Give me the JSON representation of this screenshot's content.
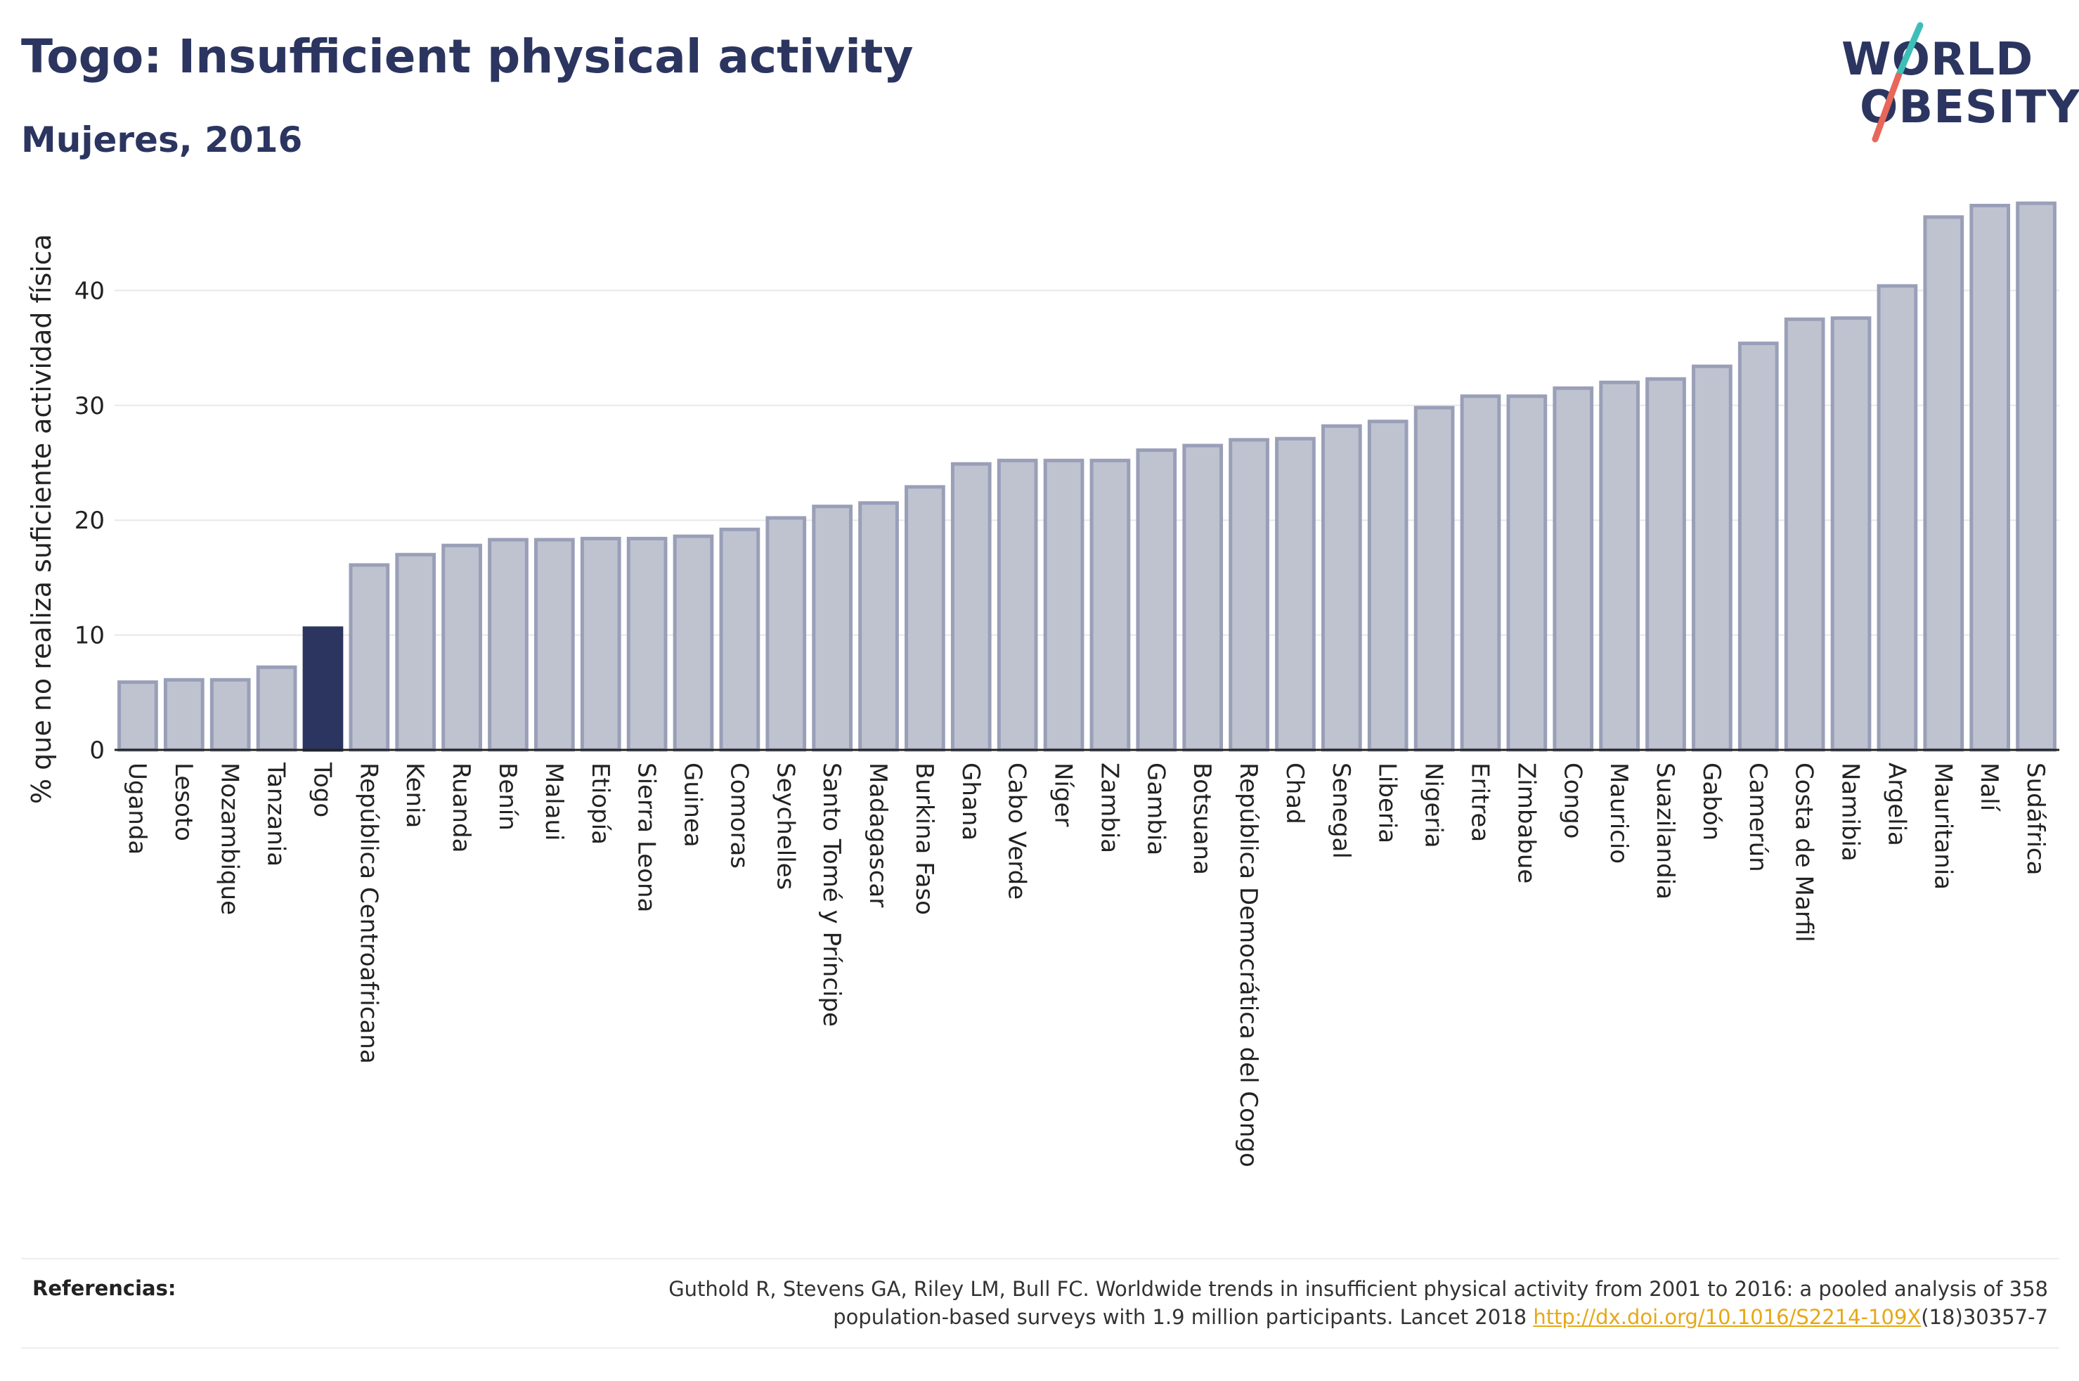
{
  "header": {
    "title": "Togo: Insufficient physical activity",
    "subtitle": "Mujeres, 2016"
  },
  "logo": {
    "line1": "WORLD",
    "line2": "OBESITY",
    "accent_colors": [
      "#3dbfb8",
      "#e8665a"
    ]
  },
  "references": {
    "label": "Referencias:",
    "text_line1": "Guthold R, Stevens GA, Riley LM, Bull FC. Worldwide trends in insufficient physical activity from 2001 to 2016: a pooled analysis of 358",
    "text_line2_before": "population-based surveys with 1.9 million participants. Lancet 2018 ",
    "link": "http://dx.doi.org/10.1016/S2214-109X",
    "text_line2_after": "(18)30357-7"
  },
  "chart_data": {
    "type": "bar",
    "title": "Togo: Insufficient physical activity",
    "subtitle": "Mujeres, 2016",
    "xlabel": "",
    "ylabel": "% que no realiza suficiente actividad física",
    "ylim": [
      0,
      50
    ],
    "yticks": [
      0,
      10,
      20,
      30,
      40
    ],
    "grid": true,
    "highlight": "Togo",
    "colors": {
      "bar": "#bfc3d0",
      "bar_border": "#9a9fb8",
      "highlight": "#2b3560",
      "grid": "#e8e8e8",
      "axis": "#222222"
    },
    "categories": [
      "Uganda",
      "Lesoto",
      "Mozambique",
      "Tanzania",
      "Togo",
      "República Centroafricana",
      "Kenia",
      "Ruanda",
      "Benín",
      "Malaui",
      "Etiopía",
      "Sierra Leona",
      "Guinea",
      "Comoras",
      "Seychelles",
      "Santo Tomé y Príncipe",
      "Madagascar",
      "Burkina Faso",
      "Ghana",
      "Cabo Verde",
      "Níger",
      "Zambia",
      "Gambia",
      "Botsuana",
      "República Democrática del Congo",
      "Chad",
      "Senegal",
      "Liberia",
      "Nigeria",
      "Eritrea",
      "Zimbabue",
      "Congo",
      "Mauricio",
      "Suazilandia",
      "Gabón",
      "Camerún",
      "Costa de Marfil",
      "Namibia",
      "Argelia",
      "Mauritania",
      "Malí",
      "Sudáfrica"
    ],
    "values": [
      5.9,
      6.1,
      6.1,
      7.2,
      10.6,
      16.1,
      17.0,
      17.8,
      18.3,
      18.3,
      18.4,
      18.4,
      18.6,
      19.2,
      20.2,
      21.2,
      21.5,
      22.9,
      24.9,
      25.2,
      25.2,
      25.2,
      26.1,
      26.5,
      27.0,
      27.1,
      28.2,
      28.6,
      29.8,
      30.8,
      30.8,
      31.5,
      32.0,
      32.3,
      33.4,
      35.4,
      37.5,
      37.6,
      40.4,
      46.4,
      47.4,
      47.6
    ]
  }
}
